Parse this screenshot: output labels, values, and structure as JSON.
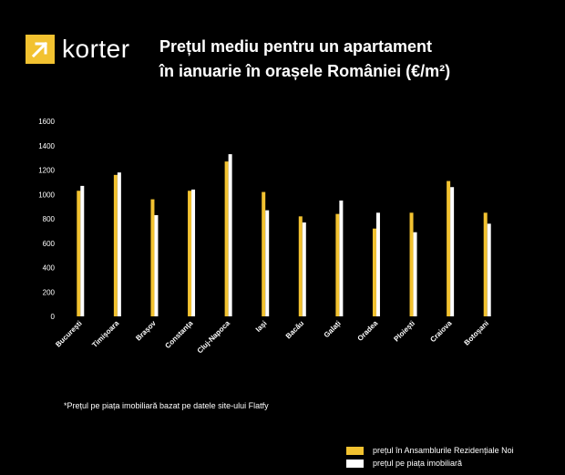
{
  "brand": {
    "name": "korter",
    "icon": "arrow-up-right-icon",
    "color": "#f2c230"
  },
  "title_line1": "Prețul mediu pentru un apartament",
  "title_line2": "în ianuarie în orașele României (€/m²)",
  "footnote": "*Prețul pe piața imobiliară bazat pe datele site-ului Flatfy",
  "chart_data": {
    "type": "bar",
    "title": "Prețul mediu pentru un apartament în ianuarie în orașele României (€/m²)",
    "categories": [
      "București",
      "Timișoara",
      "Brașov",
      "Constanța",
      "Cluj-Napoca",
      "Iași",
      "Bacău",
      "Galați",
      "Oradea",
      "Ploiești",
      "Craiova",
      "Botoșani"
    ],
    "series": [
      {
        "name": "prețul în Ansamblurile Rezidențiale Noi",
        "color": "#f2c230",
        "values": [
          1030,
          1160,
          960,
          1030,
          1270,
          1020,
          820,
          840,
          720,
          850,
          1110,
          850
        ]
      },
      {
        "name": "prețul pe piața imobiliară",
        "color": "#ffffff",
        "values": [
          1070,
          1180,
          830,
          1040,
          1330,
          870,
          770,
          950,
          850,
          690,
          1060,
          760
        ]
      }
    ],
    "yticks": [
      0,
      200,
      400,
      600,
      800,
      1000,
      1200,
      1400,
      1600
    ],
    "ylim": [
      0,
      1600
    ],
    "grid": false,
    "legend_position": "bottom-right"
  }
}
